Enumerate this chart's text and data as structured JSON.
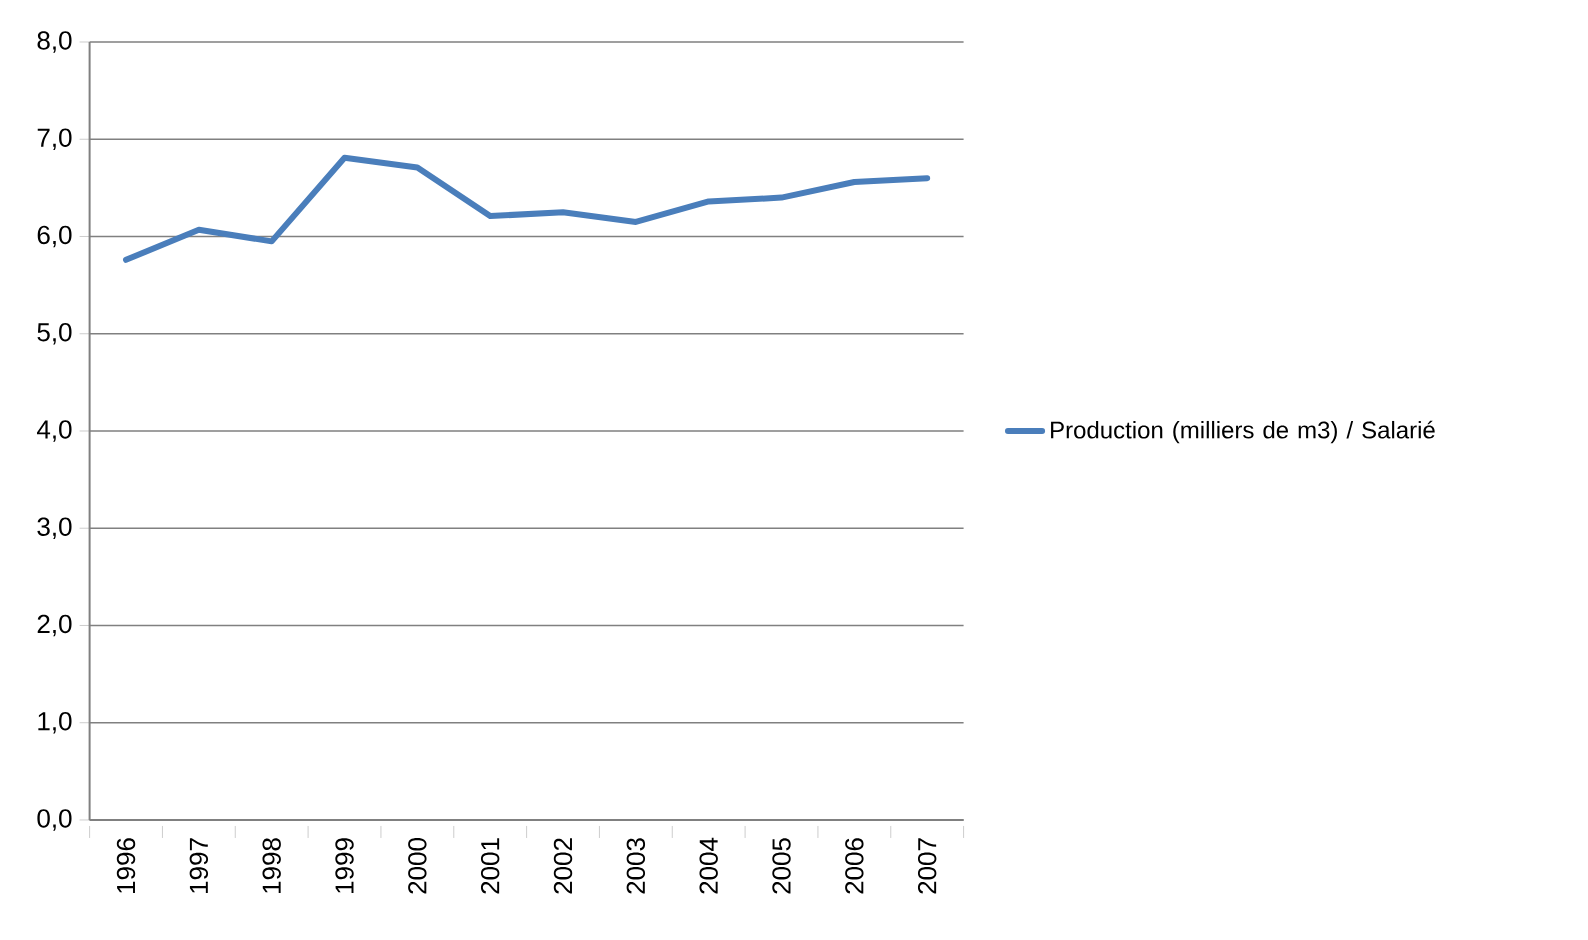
{
  "chart_data": {
    "type": "line",
    "categories": [
      "1996",
      "1997",
      "1998",
      "1999",
      "2000",
      "2001",
      "2002",
      "2003",
      "2004",
      "2005",
      "2006",
      "2007"
    ],
    "series": [
      {
        "name": "Production (milliers de m3) / Salarié",
        "color": "#4a7ebb",
        "values": [
          5.76,
          6.07,
          5.95,
          6.81,
          6.71,
          6.21,
          6.25,
          6.15,
          6.36,
          6.4,
          6.56,
          6.6
        ]
      }
    ],
    "ylim": [
      0,
      8
    ],
    "yticks": [
      {
        "value": 0,
        "label": "0,0"
      },
      {
        "value": 1,
        "label": "1,0"
      },
      {
        "value": 2,
        "label": "2,0"
      },
      {
        "value": 3,
        "label": "3,0"
      },
      {
        "value": 4,
        "label": "4,0"
      },
      {
        "value": 5,
        "label": "5,0"
      },
      {
        "value": 6,
        "label": "6,0"
      },
      {
        "value": 7,
        "label": "7,0"
      },
      {
        "value": 8,
        "label": "8,0"
      }
    ],
    "grid": "y",
    "legend": "right",
    "marker": "none",
    "line_style": "solid"
  }
}
